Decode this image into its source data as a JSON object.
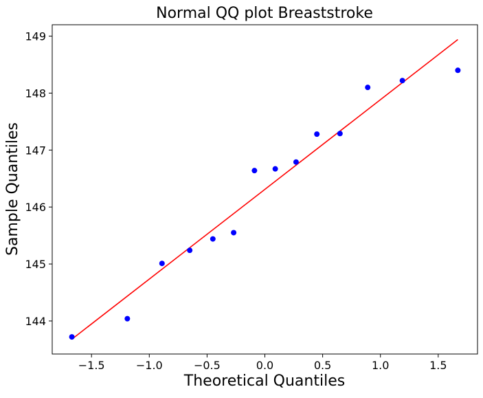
{
  "chart_data": {
    "type": "scatter",
    "title": "Normal QQ plot Breaststroke",
    "xlabel": "Theoretical Quantiles",
    "ylabel": "Sample Quantiles",
    "xlim": [
      -1.84,
      1.84
    ],
    "ylim": [
      143.42,
      149.2
    ],
    "xticks": [
      -1.5,
      -1.0,
      -0.5,
      0.0,
      0.5,
      1.0,
      1.5
    ],
    "xtick_labels": [
      "−1.5",
      "−1.0",
      "−0.5",
      "0.0",
      "0.5",
      "1.0",
      "1.5"
    ],
    "yticks": [
      144,
      145,
      146,
      147,
      148,
      149
    ],
    "ytick_labels": [
      "144",
      "145",
      "146",
      "147",
      "148",
      "149"
    ],
    "grid": false,
    "series": [
      {
        "marker_color": "#0000ff",
        "x": [
          -1.67,
          -1.19,
          -0.89,
          -0.65,
          -0.45,
          -0.27,
          -0.09,
          0.09,
          0.27,
          0.45,
          0.65,
          0.89,
          1.19,
          1.67
        ],
        "y": [
          143.72,
          144.04,
          145.01,
          145.24,
          145.44,
          145.55,
          146.64,
          146.67,
          146.79,
          147.28,
          147.29,
          148.1,
          148.22,
          148.4
        ]
      }
    ],
    "reference_line": {
      "color": "#ff0000",
      "x": [
        -1.67,
        1.67
      ],
      "y": [
        143.68,
        148.94
      ]
    }
  }
}
